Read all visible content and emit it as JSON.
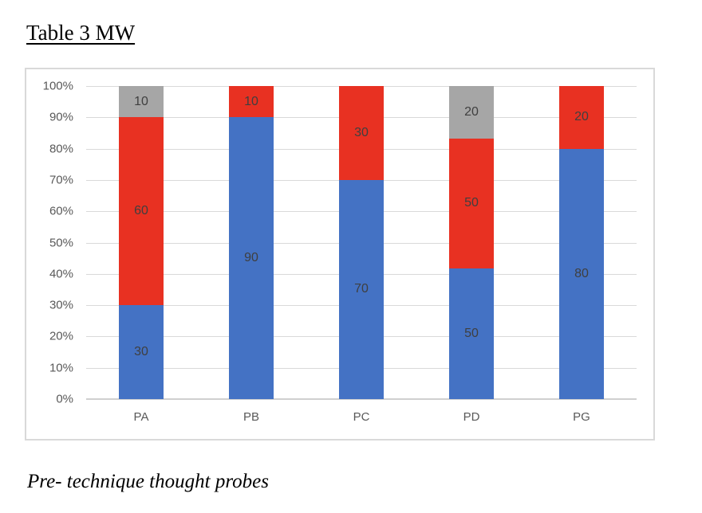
{
  "page": {
    "title": "Table 3 MW",
    "caption": "Pre- technique thought probes"
  },
  "chart_data": {
    "type": "bar",
    "subtype": "100%-stacked-column",
    "title": "Table 3 MW",
    "xlabel": "",
    "ylabel": "",
    "categories": [
      "PA",
      "PB",
      "PC",
      "PD",
      "PG"
    ],
    "series": [
      {
        "name": "blue-segment",
        "color": "#4472c4",
        "values": [
          30,
          90,
          70,
          50,
          80
        ]
      },
      {
        "name": "red-segment",
        "color": "#e83122",
        "values": [
          60,
          10,
          30,
          50,
          20
        ]
      },
      {
        "name": "gray-segment",
        "color": "#a6a6a6",
        "values": [
          10,
          0,
          0,
          20,
          0
        ]
      }
    ],
    "data_labels_shown": [
      {
        "category": "PA",
        "labels": [
          30,
          60,
          10
        ]
      },
      {
        "category": "PB",
        "labels": [
          90,
          10
        ]
      },
      {
        "category": "PC",
        "labels": [
          70,
          30
        ]
      },
      {
        "category": "PD",
        "labels": [
          50,
          50,
          20
        ]
      },
      {
        "category": "PG",
        "labels": [
          80,
          20
        ]
      }
    ],
    "y_ticks": [
      "0%",
      "10%",
      "20%",
      "30%",
      "40%",
      "50%",
      "60%",
      "70%",
      "80%",
      "90%",
      "100%"
    ],
    "ylim": [
      0,
      100
    ],
    "grid": true,
    "legend": "none"
  },
  "style": {
    "bar_label_color": "#3f3f3f",
    "axis_text_color": "#595959",
    "gridline_color": "#d9d9d9",
    "chart_border_color": "#d9d9d9"
  }
}
